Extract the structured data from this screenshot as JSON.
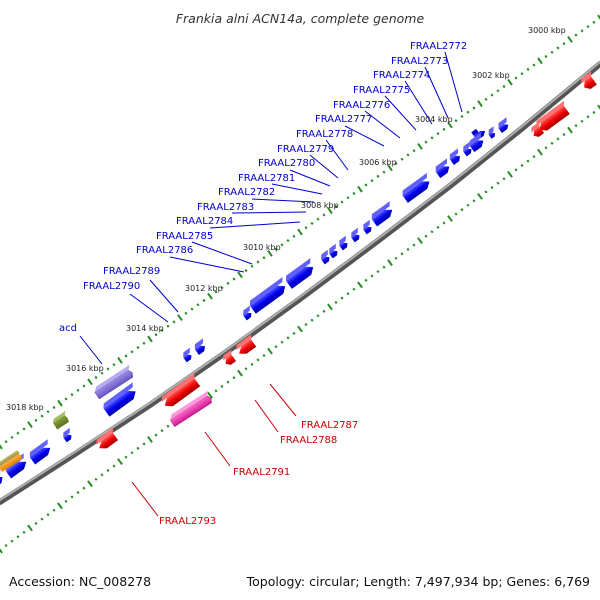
{
  "title": "Frankia alni ACN14a, complete genome",
  "footer": {
    "accession": "Accession: NC_008278",
    "summary": "Topology: circular; Length: 7,497,934 bp; Genes: 6,769"
  },
  "colors": {
    "background": "#ffffff",
    "backbone": "#888888",
    "forward_gene": "#0000ee",
    "reverse_gene": "#ee0000",
    "tick": "#228b22",
    "forward_label": "#0000cc",
    "reverse_label": "#cc0000"
  },
  "kbp_marks": [
    {
      "label": "3000 kbp"
    },
    {
      "label": "3002 kbp"
    },
    {
      "label": "3004 kbp"
    },
    {
      "label": "3006 kbp"
    },
    {
      "label": "3008 kbp"
    },
    {
      "label": "3010 kbp"
    },
    {
      "label": "3012 kbp"
    },
    {
      "label": "3014 kbp"
    },
    {
      "label": "3016 kbp"
    },
    {
      "label": "3018 kbp"
    }
  ],
  "forward_labels": [
    {
      "label": "FRAAL2772"
    },
    {
      "label": "FRAAL2773"
    },
    {
      "label": "FRAAL2774"
    },
    {
      "label": "FRAAL2775"
    },
    {
      "label": "FRAAL2776"
    },
    {
      "label": "FRAAL2777"
    },
    {
      "label": "FRAAL2778"
    },
    {
      "label": "FRAAL2779"
    },
    {
      "label": "FRAAL2780"
    },
    {
      "label": "FRAAL2781"
    },
    {
      "label": "FRAAL2782"
    },
    {
      "label": "FRAAL2783"
    },
    {
      "label": "FRAAL2784"
    },
    {
      "label": "FRAAL2785"
    },
    {
      "label": "FRAAL2786"
    },
    {
      "label": "FRAAL2789"
    },
    {
      "label": "FRAAL2790"
    },
    {
      "label": "acd"
    }
  ],
  "reverse_labels": [
    {
      "label": "FRAAL2787"
    },
    {
      "label": "FRAAL2788"
    },
    {
      "label": "FRAAL2791"
    },
    {
      "label": "FRAAL2793"
    }
  ]
}
